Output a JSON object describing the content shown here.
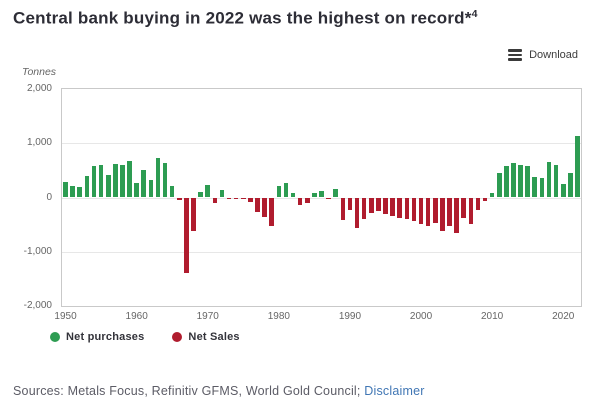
{
  "header": {
    "title_text": "Central bank buying in 2022 was the highest on record*",
    "title_superscript": "4"
  },
  "toolbar": {
    "download_label": "Download"
  },
  "chart_data": {
    "type": "bar",
    "title": "Central bank buying in 2022 was the highest on record",
    "ylabel": "Tonnes",
    "xlabel": "",
    "ylim": [
      -2000,
      2000
    ],
    "grid": true,
    "legend_position": "bottom-left",
    "ytick_labels": [
      "2,000",
      "1,000",
      "0",
      "-1,000",
      "-2,000"
    ],
    "xtick_labels": [
      "1950",
      "1960",
      "1970",
      "1980",
      "1990",
      "2000",
      "2010",
      "2020"
    ],
    "positive_color": "#2d9c52",
    "negative_color": "#b01c2e",
    "series_positive_name": "Net purchases",
    "series_negative_name": "Net Sales",
    "years": [
      1950,
      1951,
      1952,
      1953,
      1954,
      1955,
      1956,
      1957,
      1958,
      1959,
      1960,
      1961,
      1962,
      1963,
      1964,
      1965,
      1966,
      1967,
      1968,
      1969,
      1970,
      1971,
      1972,
      1973,
      1974,
      1975,
      1976,
      1977,
      1978,
      1979,
      1980,
      1981,
      1982,
      1983,
      1984,
      1985,
      1986,
      1987,
      1988,
      1989,
      1990,
      1991,
      1992,
      1993,
      1994,
      1995,
      1996,
      1997,
      1998,
      1999,
      2000,
      2001,
      2002,
      2003,
      2004,
      2005,
      2006,
      2007,
      2008,
      2009,
      2010,
      2011,
      2012,
      2013,
      2014,
      2015,
      2016,
      2017,
      2018,
      2019,
      2020,
      2021,
      2022
    ],
    "values": [
      285,
      210,
      195,
      390,
      585,
      590,
      420,
      610,
      595,
      665,
      270,
      510,
      315,
      730,
      645,
      210,
      -50,
      -1390,
      -620,
      95,
      235,
      -110,
      130,
      -25,
      -15,
      -10,
      -85,
      -265,
      -355,
      -525,
      220,
      270,
      85,
      -140,
      -95,
      85,
      120,
      -35,
      165,
      -410,
      -230,
      -560,
      -400,
      -290,
      -250,
      -310,
      -350,
      -380,
      -400,
      -440,
      -480,
      -530,
      -470,
      -620,
      -530,
      -660,
      -370,
      -480,
      -230,
      -60,
      80,
      460,
      575,
      630,
      600,
      575,
      385,
      360,
      650,
      600,
      255,
      445,
      1130
    ]
  },
  "legend": {
    "items": [
      {
        "label": "Net purchases",
        "color": "#2d9c52"
      },
      {
        "label": "Net Sales",
        "color": "#b01c2e"
      }
    ]
  },
  "footer": {
    "sources_text": "Sources: Metals Focus, Refinitiv GFMS, World Gold Council; ",
    "disclaimer_label": "Disclaimer",
    "link_color": "#4076b4"
  }
}
